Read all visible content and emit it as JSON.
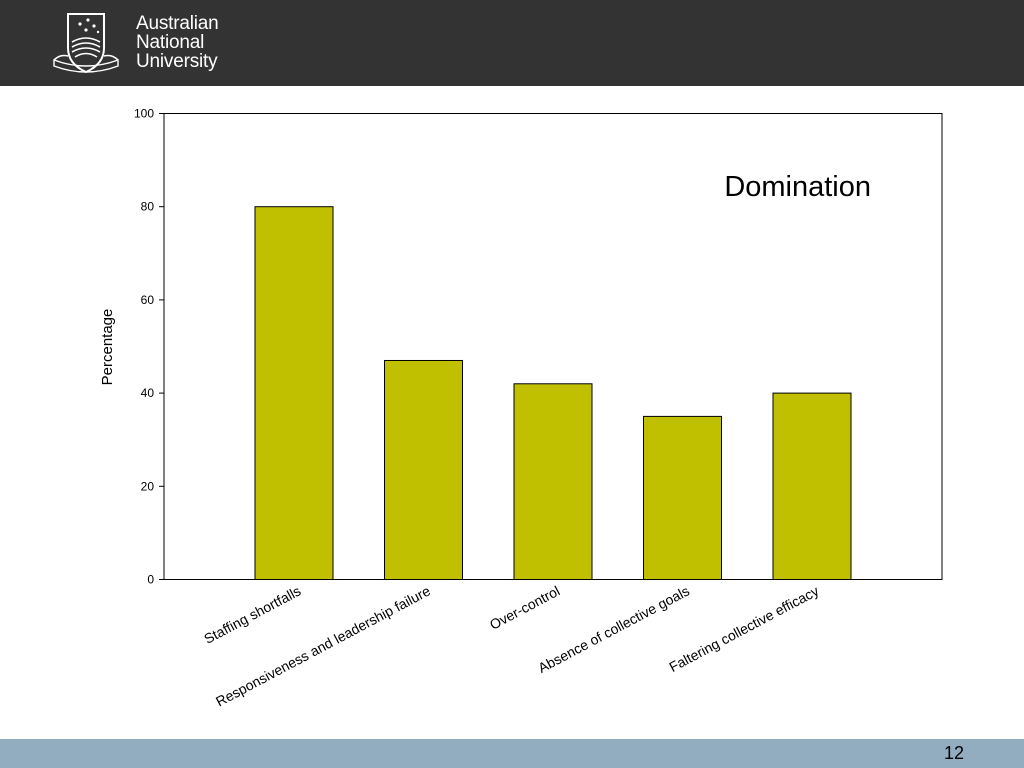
{
  "header": {
    "logo_lines": [
      "Australian",
      "National",
      "University"
    ],
    "logo_icon": "anu-crest-icon",
    "background_color": "#333333"
  },
  "chart_data": {
    "type": "bar",
    "title": "Domination",
    "xlabel": "",
    "ylabel": "Percentage",
    "categories": [
      "Staffing shortfalls",
      "Responsiveness and leadership failure",
      "Over-control",
      "Absence of collective goals",
      "Faltering collective efficacy"
    ],
    "values": [
      80,
      47,
      42,
      35,
      40
    ],
    "ylim": [
      0,
      100
    ],
    "yticks": [
      0,
      20,
      40,
      60,
      80,
      100
    ],
    "bar_color": "#c0c000",
    "grid": false,
    "legend": "none"
  },
  "footer": {
    "page_number": "12",
    "background_color": "#93adc0"
  }
}
